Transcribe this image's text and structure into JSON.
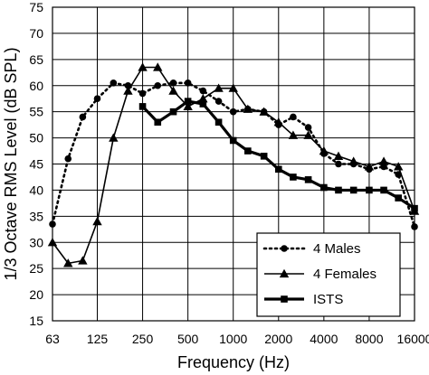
{
  "chart_data": {
    "type": "line",
    "xlabel": "Frequency (Hz)",
    "ylabel": "1/3 Octave RMS Level (dB SPL)",
    "x_scale": "log",
    "xlim": [
      63,
      16000
    ],
    "ylim": [
      15,
      75
    ],
    "x_ticks": [
      63,
      125,
      250,
      500,
      1000,
      2000,
      4000,
      8000,
      16000
    ],
    "x_tick_labels": [
      "63",
      "125",
      "250",
      "500",
      "1000",
      "2000",
      "4000",
      "8000",
      "16000"
    ],
    "y_ticks": [
      15,
      20,
      25,
      30,
      35,
      40,
      45,
      50,
      55,
      60,
      65,
      70,
      75
    ],
    "y_tick_labels": [
      "15",
      "20",
      "25",
      "30",
      "35",
      "40",
      "45",
      "50",
      "55",
      "60",
      "65",
      "70",
      "75"
    ],
    "grid": true,
    "legend_position": "bottom-right",
    "series": [
      {
        "name": "4 Males",
        "style": "dotted",
        "marker": "circle",
        "points": [
          [
            63,
            33.5
          ],
          [
            80,
            46
          ],
          [
            100,
            54
          ],
          [
            125,
            57.5
          ],
          [
            160,
            60.5
          ],
          [
            200,
            60
          ],
          [
            250,
            58.5
          ],
          [
            315,
            60
          ],
          [
            400,
            60.5
          ],
          [
            500,
            60.5
          ],
          [
            630,
            59
          ],
          [
            800,
            57
          ],
          [
            1000,
            55
          ],
          [
            1250,
            55.5
          ],
          [
            1600,
            55
          ],
          [
            2000,
            52.5
          ],
          [
            2500,
            54
          ],
          [
            3150,
            52
          ],
          [
            4000,
            47
          ],
          [
            5000,
            45
          ],
          [
            6300,
            45
          ],
          [
            8000,
            44
          ],
          [
            10000,
            44.5
          ],
          [
            12500,
            43
          ],
          [
            16000,
            33
          ]
        ]
      },
      {
        "name": "4 Females",
        "style": "solid",
        "marker": "triangle",
        "points": [
          [
            63,
            30
          ],
          [
            80,
            26
          ],
          [
            100,
            26.5
          ],
          [
            125,
            34
          ],
          [
            160,
            50
          ],
          [
            200,
            59
          ],
          [
            250,
            63.5
          ],
          [
            315,
            63.5
          ],
          [
            400,
            59
          ],
          [
            500,
            56
          ],
          [
            630,
            57.5
          ],
          [
            800,
            59.5
          ],
          [
            1000,
            59.5
          ],
          [
            1250,
            55.5
          ],
          [
            1600,
            55
          ],
          [
            2000,
            53
          ],
          [
            2500,
            50.5
          ],
          [
            3150,
            50.5
          ],
          [
            4000,
            47.5
          ],
          [
            5000,
            46.5
          ],
          [
            6300,
            45.5
          ],
          [
            8000,
            44.5
          ],
          [
            10000,
            45.5
          ],
          [
            12500,
            44.5
          ],
          [
            16000,
            36
          ]
        ]
      },
      {
        "name": "ISTS",
        "style": "solid",
        "marker": "square",
        "points": [
          [
            250,
            56
          ],
          [
            315,
            53
          ],
          [
            400,
            55
          ],
          [
            500,
            57
          ],
          [
            630,
            56.5
          ],
          [
            800,
            53
          ],
          [
            1000,
            49.5
          ],
          [
            1250,
            47.5
          ],
          [
            1600,
            46.5
          ],
          [
            2000,
            44
          ],
          [
            2500,
            42.5
          ],
          [
            3150,
            42
          ],
          [
            4000,
            40.5
          ],
          [
            5000,
            40
          ],
          [
            6300,
            40
          ],
          [
            8000,
            40
          ],
          [
            10000,
            40
          ],
          [
            12500,
            38.5
          ],
          [
            16000,
            36.5
          ]
        ]
      }
    ]
  }
}
